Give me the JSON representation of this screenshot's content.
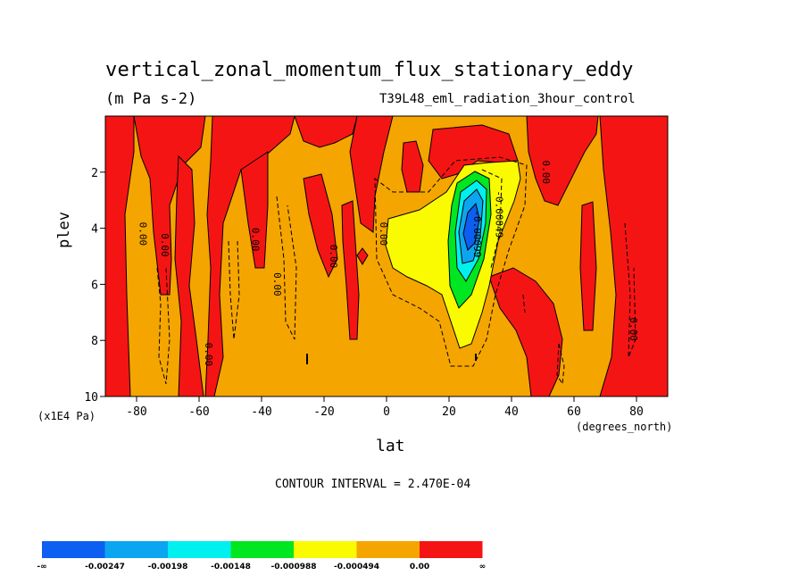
{
  "chart_data": {
    "type": "heatmap",
    "title": "vertical_zonal_momentum_flux_stationary_eddy",
    "units": "(m Pa s-2)",
    "run_label": "T39L48_eml_radiation_3hour_control",
    "xlabel": "lat",
    "xunits": "(degrees_north)",
    "ylabel": "plev",
    "yunits": "(x1E4 Pa)",
    "xlim": [
      -90,
      90
    ],
    "ylim": [
      10,
      0
    ],
    "x_ticks": [
      -80,
      -60,
      -40,
      -20,
      0,
      20,
      40,
      60,
      80
    ],
    "x_tick_labels": [
      "-80",
      "-60",
      "-40",
      "-20",
      "0",
      "20",
      "40",
      "60",
      "80"
    ],
    "y_ticks": [
      2,
      4,
      6,
      8,
      10
    ],
    "y_tick_labels": [
      "2",
      "4",
      "6",
      "8",
      "10"
    ],
    "contour_interval_text": "CONTOUR INTERVAL = 2.470E-04",
    "contour_labels": [
      {
        "text": "0.00",
        "lat": -78,
        "plev": 4.2
      },
      {
        "text": "0.00",
        "lat": -71,
        "plev": 4.6
      },
      {
        "text": "0.00",
        "lat": -57,
        "plev": 8.5
      },
      {
        "text": "0.00",
        "lat": -42,
        "plev": 4.4
      },
      {
        "text": "0.00",
        "lat": -35,
        "plev": 6.0
      },
      {
        "text": "0.00",
        "lat": -17,
        "plev": 5.0
      },
      {
        "text": "0.00",
        "lat": -1,
        "plev": 4.2
      },
      {
        "text": "-0.00049",
        "lat": 36,
        "plev": 3.5
      },
      {
        "text": "-0.00099",
        "lat": 29,
        "plev": 4.2
      },
      {
        "text": "0.00",
        "lat": 51,
        "plev": 2.0
      },
      {
        "text": "0.00",
        "lat": 79,
        "plev": 7.6
      }
    ],
    "legend": {
      "bounds": [
        "-∞",
        "-0.00247",
        "-0.00198",
        "-0.00148",
        "-0.000988",
        "-0.000494",
        "0.00",
        "∞"
      ],
      "colors": [
        "#0c5ff0",
        "#0ca5f0",
        "#00f0f0",
        "#00e620",
        "#fafa00",
        "#f5a500",
        "#f51414"
      ]
    }
  }
}
